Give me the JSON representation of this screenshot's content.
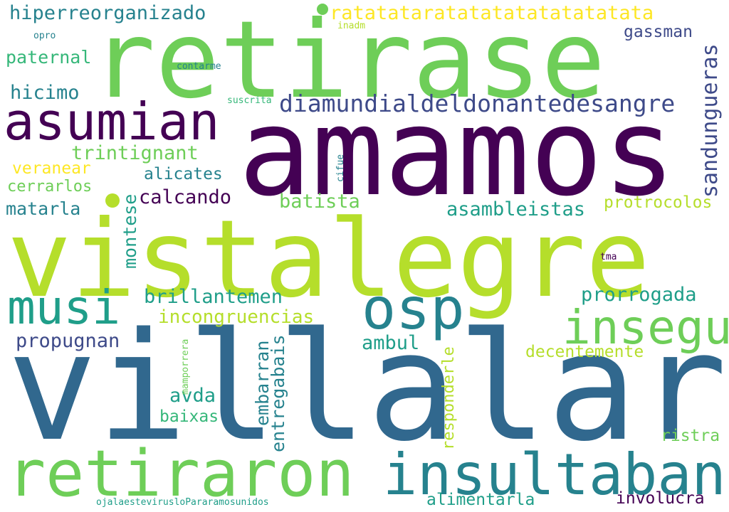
{
  "cloud": {
    "colors": {
      "dark_purple": "#440154",
      "indigo": "#3e4a89",
      "steel_blue": "#31688e",
      "teal": "#26828e",
      "jade": "#1f9e89",
      "green": "#35b779",
      "light_green": "#6ece58",
      "lime": "#b5de2b",
      "yellow": "#fde725"
    },
    "words": [
      "retirase",
      "amamos",
      "vistalegre",
      "villalar",
      "asumian",
      "retiraron",
      "insultaban",
      "osp",
      "insegu",
      "musi",
      "diamundialdeldonantedesangre",
      "ratatataratatatatatatatatata",
      "hiperreorganizado",
      "sandungueras",
      "trintignant",
      "brillantemen",
      "incongruencias",
      "asambleistas",
      "propugnan",
      "prorrogada",
      "calcando",
      "batista",
      "protrocolos",
      "matarla",
      "montese",
      "alicates",
      "veranear",
      "cerrarlos",
      "paternal",
      "hicimo",
      "gassman",
      "ambul",
      "decentemente",
      "embarran",
      "entregabais",
      "responderle",
      "avda",
      "baixas",
      "alimentarla",
      "involucra",
      "ristra",
      "mamporrera",
      "ojalaestevirusloPararamosunidos",
      "inadm",
      "opro",
      "contarme",
      "suscrita",
      "cifue",
      "tma"
    ]
  }
}
